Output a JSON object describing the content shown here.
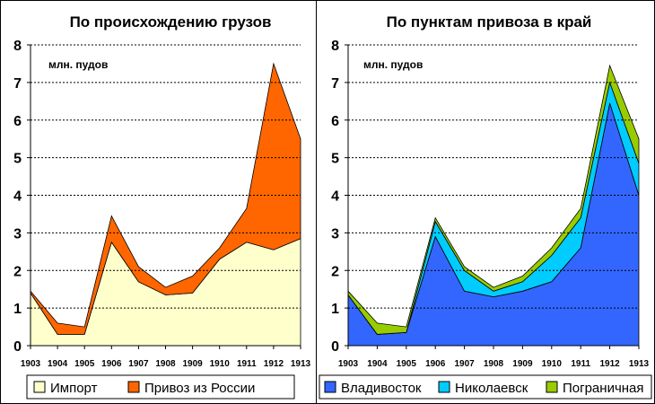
{
  "chart_data": [
    {
      "type": "area",
      "stacked": true,
      "title": "По происхождению грузов",
      "unit_label": "млн. пудов",
      "x": [
        1903,
        1904,
        1905,
        1906,
        1907,
        1908,
        1909,
        1910,
        1911,
        1912,
        1913
      ],
      "ylim": [
        0,
        8
      ],
      "yticks": [
        0,
        1,
        2,
        3,
        4,
        5,
        6,
        7,
        8
      ],
      "grid": true,
      "legend_position": "bottom",
      "series": [
        {
          "name": "Импорт",
          "color": "#ffffcc",
          "values": [
            1.4,
            0.3,
            0.3,
            2.75,
            1.7,
            1.35,
            1.4,
            2.3,
            2.75,
            2.55,
            2.85
          ]
        },
        {
          "name": "Привоз из России",
          "color": "#ff6600",
          "values": [
            0.05,
            0.3,
            0.2,
            0.7,
            0.4,
            0.2,
            0.45,
            0.3,
            0.9,
            4.95,
            2.65
          ]
        }
      ]
    },
    {
      "type": "area",
      "stacked": true,
      "title": "По пунктам привоза в край",
      "unit_label": "млн. пудов",
      "x": [
        1903,
        1904,
        1905,
        1906,
        1907,
        1908,
        1909,
        1910,
        1911,
        1912,
        1913
      ],
      "ylim": [
        0,
        8
      ],
      "yticks": [
        0,
        1,
        2,
        3,
        4,
        5,
        6,
        7,
        8
      ],
      "grid": true,
      "legend_position": "bottom",
      "series": [
        {
          "name": "Владивосток",
          "color": "#3366ff",
          "values": [
            1.35,
            0.3,
            0.35,
            2.9,
            1.45,
            1.3,
            1.45,
            1.7,
            2.6,
            6.45,
            4.0
          ]
        },
        {
          "name": "Николаевск",
          "color": "#00ccff",
          "values": [
            0.0,
            0.0,
            0.0,
            0.4,
            0.55,
            0.15,
            0.25,
            0.7,
            0.8,
            0.55,
            0.85
          ]
        },
        {
          "name": "Пограничная",
          "color": "#99cc00",
          "values": [
            0.1,
            0.3,
            0.15,
            0.1,
            0.1,
            0.1,
            0.15,
            0.2,
            0.25,
            0.45,
            0.65
          ]
        }
      ]
    }
  ]
}
